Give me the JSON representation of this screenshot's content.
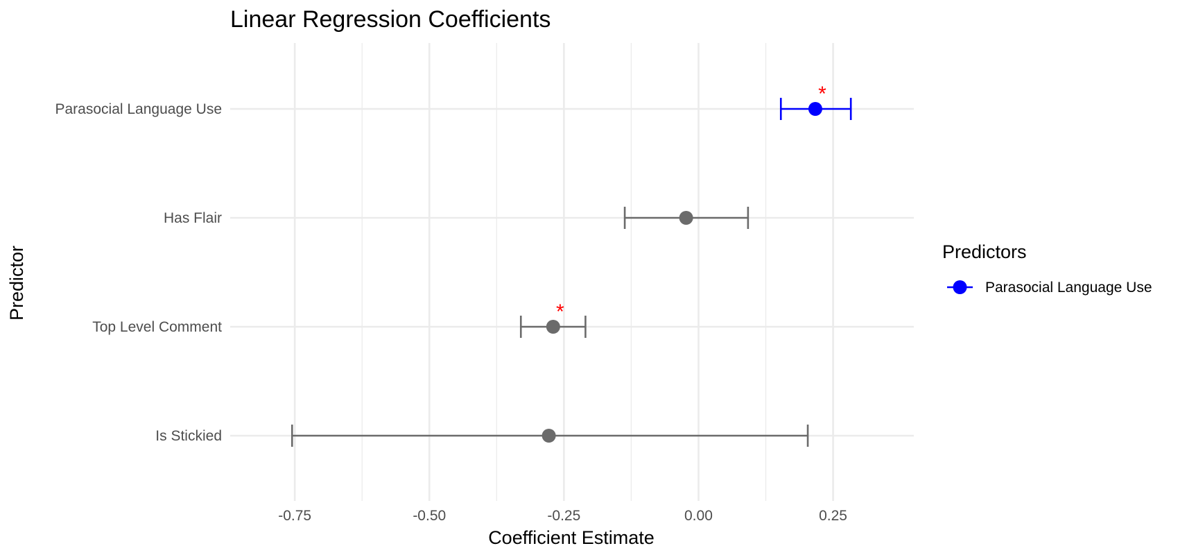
{
  "chart_data": {
    "type": "scatter",
    "subtype": "coefficient-plot",
    "title": "Linear Regression Coefficients",
    "xlabel": "Coefficient Estimate",
    "ylabel": "Predictor",
    "xlim": [
      -0.87,
      0.4
    ],
    "x_ticks": [
      -0.75,
      -0.5,
      -0.25,
      0.0,
      0.25
    ],
    "x_tick_labels": [
      "-0.75",
      "-0.50",
      "-0.25",
      "0.00",
      "0.25"
    ],
    "grid": true,
    "categories": [
      "Parasocial Language Use",
      "Has Flair",
      "Top Level Comment",
      "Is Stickied"
    ],
    "series": [
      {
        "estimates": [
          0.217,
          -0.023,
          -0.27,
          -0.278
        ],
        "ci_low": [
          0.153,
          -0.137,
          -0.33,
          -0.755
        ],
        "ci_high": [
          0.283,
          0.092,
          -0.21,
          0.203
        ],
        "significant": [
          true,
          false,
          true,
          false
        ],
        "highlighted": [
          true,
          false,
          false,
          false
        ]
      }
    ],
    "significance_marker": "*",
    "legend": {
      "title": "Predictors",
      "position": "right",
      "entries": [
        "Parasocial Language Use"
      ]
    },
    "colors": {
      "highlight": "#0000ff",
      "default": "#6b6b6b",
      "significance": "#ff0000",
      "grid": "#ebebeb"
    }
  }
}
